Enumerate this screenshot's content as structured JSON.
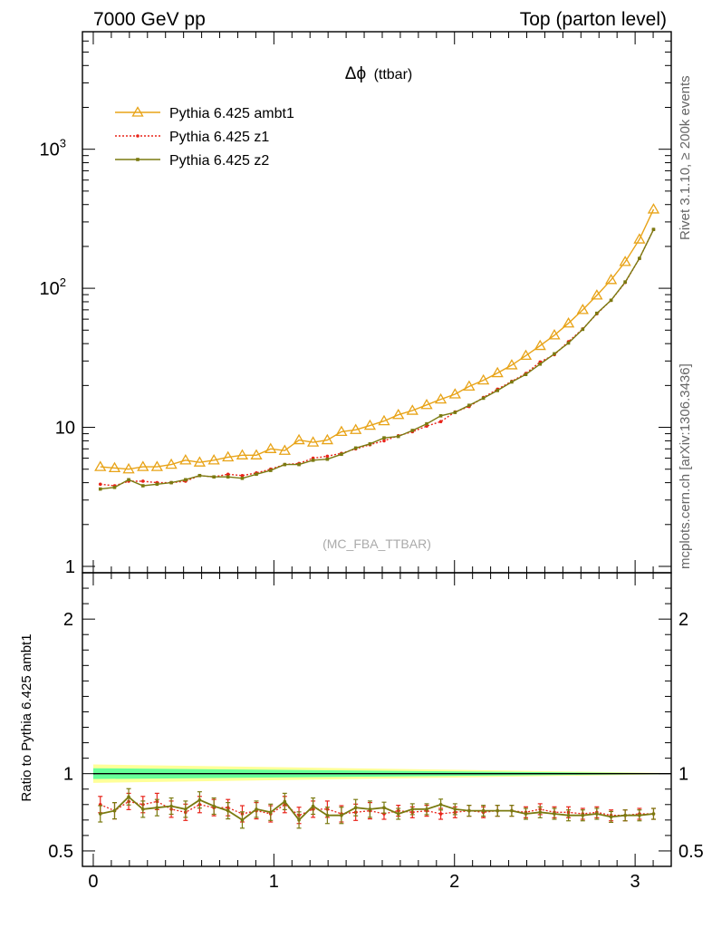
{
  "header": {
    "left": "7000 GeV pp",
    "right": "Top (parton level)"
  },
  "side_labels": {
    "rivet": "Rivet 3.1.10, ≥ 200k events",
    "mcplots": "mcplots.cern.ch [arXiv:1306.3436]"
  },
  "chart_data": [
    {
      "type": "line",
      "panel": "main",
      "title_symbol": "Δϕ",
      "title_text": "(ttbar)",
      "watermark": "(MC_FBA_TTBAR)",
      "yscale": "log",
      "xlim": [
        -0.06,
        3.2
      ],
      "ylim": [
        0.9,
        7000
      ],
      "y_ticks": [
        {
          "value": 1,
          "label": "1"
        },
        {
          "value": 10,
          "label": "10"
        },
        {
          "value": 100,
          "label": "10",
          "exp": "2"
        },
        {
          "value": 1000,
          "label": "10",
          "exp": "3"
        }
      ],
      "legend_position": "top-left",
      "colors": {
        "ambt1": "#e8a317",
        "z1": "#e8241a",
        "z2": "#7a7a10",
        "band_yellow": "#ffff99",
        "band_green": "#66ff99"
      },
      "x": [
        0.039,
        0.118,
        0.196,
        0.275,
        0.353,
        0.432,
        0.511,
        0.589,
        0.668,
        0.746,
        0.825,
        0.903,
        0.982,
        1.06,
        1.139,
        1.217,
        1.296,
        1.374,
        1.453,
        1.532,
        1.61,
        1.689,
        1.767,
        1.846,
        1.924,
        2.003,
        2.081,
        2.16,
        2.238,
        2.317,
        2.395,
        2.474,
        2.553,
        2.631,
        2.71,
        2.788,
        2.867,
        2.945,
        3.024,
        3.102
      ],
      "series": [
        {
          "name": "Pythia 6.425 ambt1",
          "key": "ambt1",
          "marker": "triangle",
          "values": [
            5.2,
            5.1,
            5.0,
            5.2,
            5.2,
            5.4,
            5.8,
            5.6,
            5.8,
            6.1,
            6.3,
            6.3,
            7.0,
            6.8,
            8.1,
            7.8,
            8.1,
            9.3,
            9.6,
            10.3,
            11.1,
            12.3,
            13.2,
            14.5,
            15.9,
            17.3,
            19.7,
            21.8,
            24.6,
            28.0,
            32.8,
            38.6,
            46.0,
            56.0,
            70.0,
            89.0,
            115.0,
            155.0,
            225.0,
            370.0
          ]
        },
        {
          "name": "Pythia 6.425 z1",
          "key": "z1",
          "marker": "dot",
          "values": [
            3.9,
            3.8,
            4.1,
            4.1,
            4.0,
            4.0,
            4.1,
            4.5,
            4.4,
            4.6,
            4.5,
            4.7,
            5.0,
            5.4,
            5.5,
            6.0,
            6.2,
            6.5,
            7.0,
            7.5,
            8.0,
            8.7,
            9.3,
            10.2,
            11.0,
            12.9,
            14.1,
            16.4,
            18.8,
            21.4,
            24.4,
            29.5,
            33.3,
            41.3,
            51.0,
            65.5,
            82.0,
            110.0,
            164.0,
            265.0
          ]
        },
        {
          "name": "Pythia 6.425 z2",
          "key": "z2",
          "marker": "square",
          "values": [
            3.6,
            3.7,
            4.2,
            3.8,
            3.9,
            4.0,
            4.2,
            4.5,
            4.4,
            4.4,
            4.3,
            4.6,
            4.9,
            5.4,
            5.4,
            5.8,
            5.9,
            6.4,
            7.1,
            7.6,
            8.4,
            8.6,
            9.5,
            10.6,
            12.1,
            12.8,
            14.4,
            16.2,
            18.4,
            21.2,
            24.0,
            28.5,
            33.8,
            40.4,
            50.7,
            66.1,
            82.0,
            111.0,
            164.0,
            265.0
          ]
        }
      ]
    },
    {
      "type": "line",
      "panel": "ratio",
      "ylabel": "Ratio to Pythia 6.425 ambt1",
      "xlim": [
        -0.06,
        3.2
      ],
      "ylim": [
        0.4,
        2.3
      ],
      "x_ticks": [
        0,
        1,
        2,
        3
      ],
      "y_ticks": [
        {
          "value": 0.5,
          "label": "0.5"
        },
        {
          "value": 1,
          "label": "1"
        },
        {
          "value": 2,
          "label": "2"
        }
      ],
      "reference": 1.0,
      "series": [
        {
          "name": "Pythia 6.425 z1",
          "key": "z1",
          "values": [
            0.8,
            0.76,
            0.82,
            0.8,
            0.82,
            0.77,
            0.75,
            0.8,
            0.78,
            0.78,
            0.74,
            0.76,
            0.74,
            0.8,
            0.73,
            0.77,
            0.77,
            0.74,
            0.75,
            0.76,
            0.74,
            0.76,
            0.75,
            0.76,
            0.74,
            0.75,
            0.76,
            0.75,
            0.76,
            0.76,
            0.75,
            0.77,
            0.75,
            0.75,
            0.74,
            0.75,
            0.73,
            0.73,
            0.74,
            0.74
          ]
        },
        {
          "name": "Pythia 6.425 z2",
          "key": "z2",
          "values": [
            0.74,
            0.76,
            0.85,
            0.77,
            0.78,
            0.79,
            0.77,
            0.83,
            0.79,
            0.76,
            0.7,
            0.77,
            0.75,
            0.82,
            0.7,
            0.79,
            0.73,
            0.73,
            0.78,
            0.77,
            0.78,
            0.74,
            0.77,
            0.77,
            0.8,
            0.77,
            0.76,
            0.76,
            0.76,
            0.76,
            0.74,
            0.75,
            0.74,
            0.73,
            0.73,
            0.74,
            0.72,
            0.73,
            0.73,
            0.74
          ]
        }
      ]
    }
  ]
}
